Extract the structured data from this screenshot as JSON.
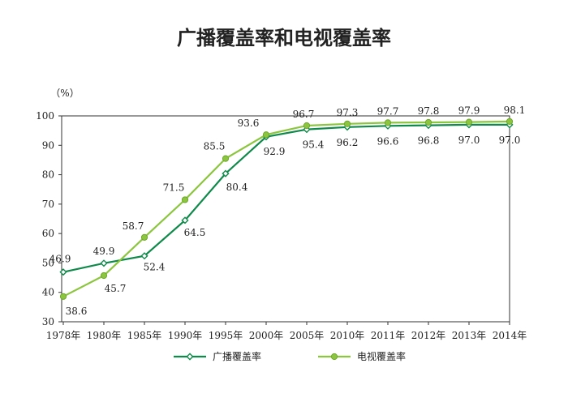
{
  "chart_data": {
    "type": "line",
    "title": "广播覆盖率和电视覆盖率",
    "ylabel": "（%）",
    "xlabel": "",
    "categories": [
      "1978年",
      "1980年",
      "1985年",
      "1990年",
      "1995年",
      "2000年",
      "2005年",
      "2010年",
      "2011年",
      "2012年",
      "2013年",
      "2014年"
    ],
    "ylim": [
      30,
      100
    ],
    "yticks": [
      30,
      40,
      50,
      60,
      70,
      80,
      90,
      100
    ],
    "grid": false,
    "legend_position": "bottom",
    "series": [
      {
        "name": "广播覆盖率",
        "color": "#0f8a4a",
        "marker": "diamond",
        "values": [
          46.9,
          49.9,
          52.4,
          64.5,
          80.4,
          92.9,
          95.4,
          96.2,
          96.6,
          96.8,
          97.0,
          97.0
        ],
        "labels": [
          "46.9",
          "49.9",
          "52.4",
          "64.5",
          "80.4",
          "92.9",
          "95.4",
          "96.2",
          "96.6",
          "96.8",
          "97.0",
          "97.0"
        ]
      },
      {
        "name": "电视覆盖率",
        "color": "#8cc63f",
        "marker": "circle",
        "values": [
          38.6,
          45.7,
          58.7,
          71.5,
          85.5,
          93.6,
          96.7,
          97.3,
          97.7,
          97.8,
          97.9,
          98.1
        ],
        "labels": [
          "38.6",
          "45.7",
          "58.7",
          "71.5",
          "85.5",
          "93.6",
          "96.7",
          "97.3",
          "97.7",
          "97.8",
          "97.9",
          "98.1"
        ]
      }
    ]
  }
}
